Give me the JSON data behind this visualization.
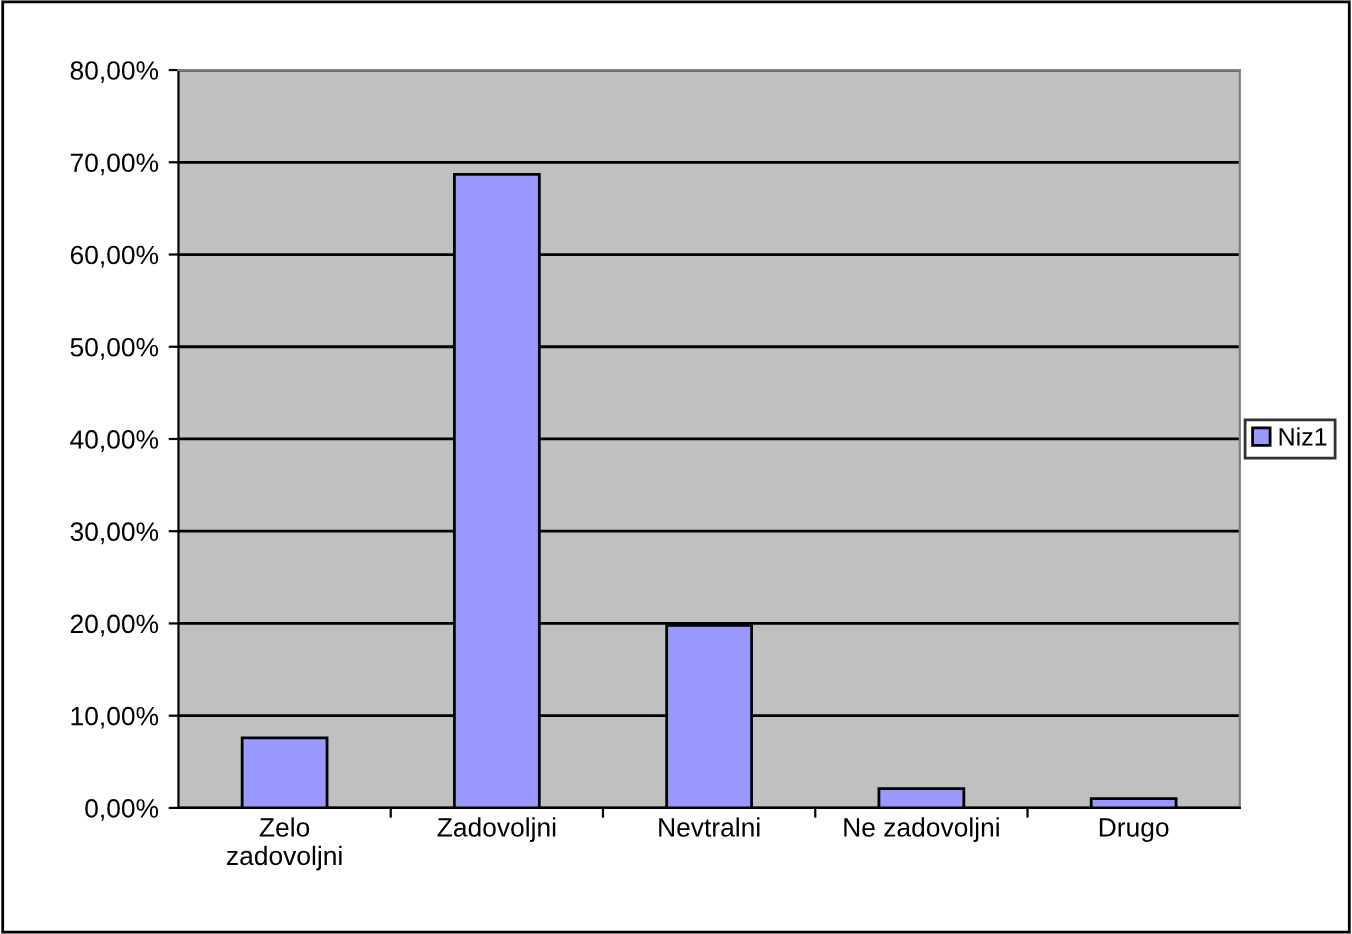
{
  "chart_data": {
    "type": "bar",
    "categories": [
      "Zelo\nzadovoljni",
      "Zadovoljni",
      "Nevtralni",
      "Ne zadovoljni",
      "Drugo"
    ],
    "series": [
      {
        "name": "Niz1",
        "color": "#9999ff",
        "values": [
          7.6,
          68.7,
          19.8,
          2.1,
          1.0
        ]
      }
    ],
    "ylim": [
      0,
      80
    ],
    "yticks": [
      {
        "value": 0,
        "label": "0,00%"
      },
      {
        "value": 10,
        "label": "10,00%"
      },
      {
        "value": 20,
        "label": "20,00%"
      },
      {
        "value": 30,
        "label": "30,00%"
      },
      {
        "value": 40,
        "label": "40,00%"
      },
      {
        "value": 50,
        "label": "50,00%"
      },
      {
        "value": 60,
        "label": "60,00%"
      },
      {
        "value": 70,
        "label": "70,00%"
      },
      {
        "value": 80,
        "label": "80,00%"
      }
    ],
    "grid": "y",
    "legend": "right"
  }
}
